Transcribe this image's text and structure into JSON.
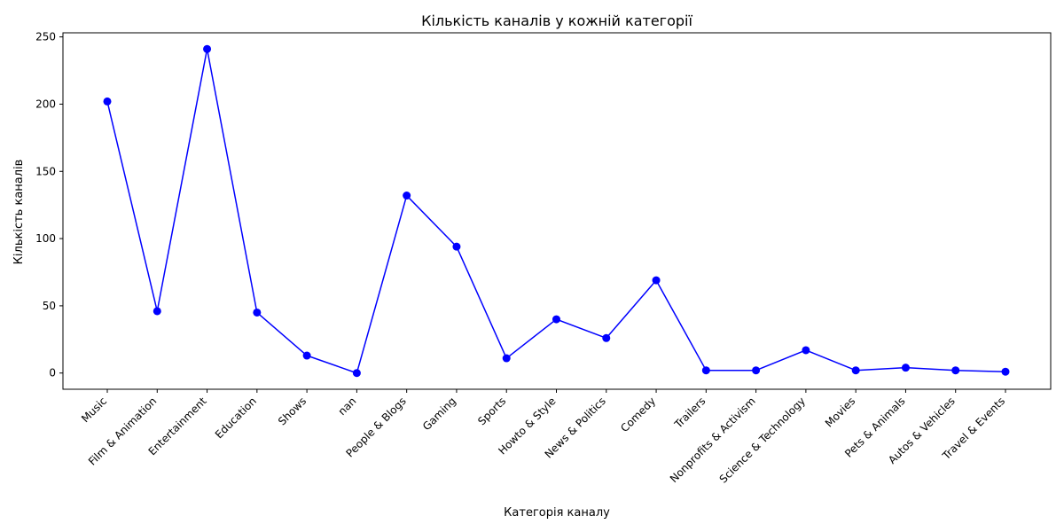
{
  "chart_data": {
    "type": "line",
    "title": "Кількість каналів у кожній категорії",
    "xlabel": "Категорія каналу",
    "ylabel": "Кількість каналів",
    "categories": [
      "Music",
      "Film & Animation",
      "Entertainment",
      "Education",
      "Shows",
      "nan",
      "People & Blogs",
      "Gaming",
      "Sports",
      "Howto & Style",
      "News & Politics",
      "Comedy",
      "Trailers",
      "Nonprofits & Activism",
      "Science & Technology",
      "Movies",
      "Pets & Animals",
      "Autos & Vehicles",
      "Travel & Events"
    ],
    "values": [
      202,
      46,
      241,
      45,
      13,
      0,
      132,
      94,
      11,
      40,
      26,
      69,
      2,
      2,
      17,
      2,
      4,
      2,
      1
    ],
    "ylim": [
      -12.05,
      253.05
    ],
    "yticks": [
      0,
      50,
      100,
      150,
      200,
      250
    ],
    "grid": false,
    "legend": "none",
    "line_color": "#0000ff",
    "marker_color": "#0000ff",
    "marker": "circle"
  }
}
